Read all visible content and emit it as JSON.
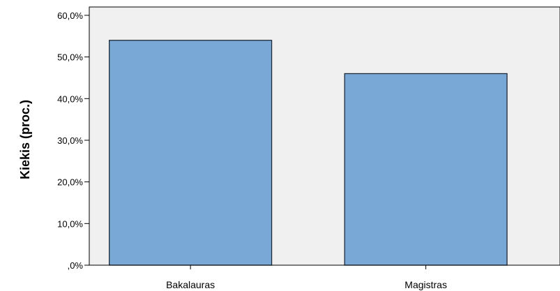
{
  "chart_data": {
    "type": "bar",
    "categories": [
      "Bakalauras",
      "Magistras"
    ],
    "values": [
      54.0,
      46.0
    ],
    "ylabel": "Kiekis (proc.)",
    "xlabel": "",
    "ylim": [
      0,
      62
    ],
    "yticks": [
      0,
      10,
      20,
      30,
      40,
      50,
      60
    ],
    "ytick_labels": [
      ",0%",
      "10,0%",
      "20,0%",
      "30,0%",
      "40,0%",
      "50,0%",
      "60,0%"
    ],
    "grid": false,
    "legend": "none",
    "colors": {
      "plot_background": "#f0f0f0",
      "bar_fill": "#79a8d6",
      "bar_stroke": "#1f2a38",
      "axis": "#000000"
    }
  }
}
